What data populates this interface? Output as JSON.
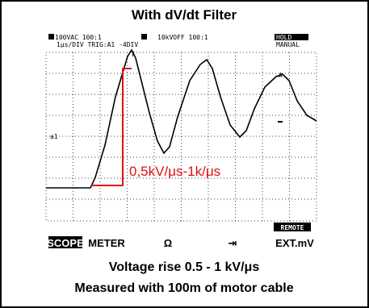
{
  "title": "With dV/dt Filter",
  "screen": {
    "header": {
      "channel_a": "100VAC 100:1",
      "channel_b": "10kVOFF 100:1",
      "timebase": "1μs/DIV TRIG:A1 -4DIV",
      "hold": "HOLD",
      "mode": "MANUAL"
    },
    "trace_label": "a1",
    "trigger_marker": "T",
    "cursor_marker": "A",
    "annotation": "0,5kV/μs-1k/μs",
    "remote": "REMOTE",
    "menu": [
      "SCOPE",
      "METER",
      "Ω",
      "⇥",
      "EXT.mV"
    ]
  },
  "caption": [
    "Voltage rise 0.5 - 1 kV/μs",
    "Measured with 100m of motor cable"
  ]
}
